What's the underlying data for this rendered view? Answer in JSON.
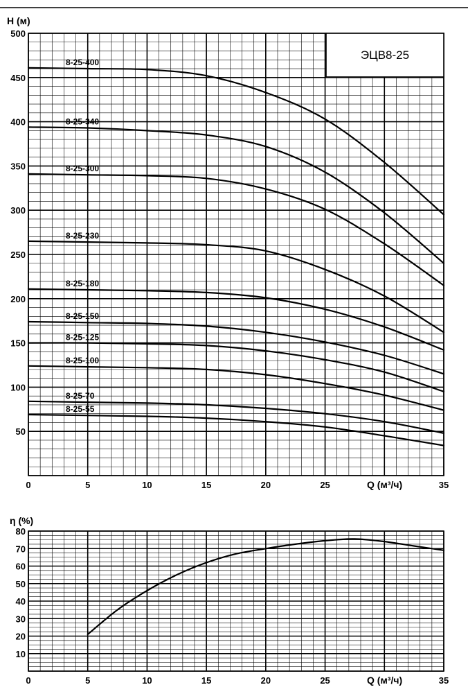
{
  "chart_data": [
    {
      "type": "line",
      "title_box": "ЭЦВ8-25",
      "ylabel": "H (м)",
      "xlabel": "Q (м³/ч)",
      "xlim": [
        0,
        35
      ],
      "ylim": [
        0,
        500
      ],
      "x_ticks": [
        "0",
        "5",
        "10",
        "15",
        "20",
        "25",
        "35"
      ],
      "y_ticks": [
        "50",
        "100",
        "150",
        "200",
        "250",
        "300",
        "350",
        "400",
        "450",
        "500"
      ],
      "grid": true,
      "x": [
        0,
        5,
        10,
        15,
        20,
        25,
        30,
        35
      ],
      "series": [
        {
          "name": "8-25-400",
          "values": [
            461,
            460,
            459,
            452,
            433,
            403,
            354,
            295
          ]
        },
        {
          "name": "8-25-340",
          "values": [
            394,
            393,
            390,
            385,
            372,
            343,
            297,
            240
          ]
        },
        {
          "name": "8-25-300",
          "values": [
            341,
            340,
            339,
            336,
            324,
            301,
            262,
            215
          ]
        },
        {
          "name": "8-25-230",
          "values": [
            265,
            264,
            263,
            261,
            254,
            233,
            203,
            162
          ]
        },
        {
          "name": "8-25-180",
          "values": [
            211,
            210,
            209,
            207,
            201,
            188,
            168,
            142
          ]
        },
        {
          "name": "8-25-150",
          "values": [
            174,
            173,
            172,
            169,
            162,
            151,
            136,
            115
          ]
        },
        {
          "name": "8-25-125",
          "values": [
            150,
            150,
            149,
            147,
            141,
            131,
            117,
            95
          ]
        },
        {
          "name": "8-25-100",
          "values": [
            124,
            123,
            122,
            120,
            114,
            104,
            91,
            74
          ]
        },
        {
          "name": "8-25-70",
          "values": [
            84,
            83,
            82,
            80,
            76,
            70,
            61,
            48
          ]
        },
        {
          "name": "8-25-55",
          "values": [
            69,
            68,
            67,
            65,
            61,
            55,
            45,
            34
          ]
        }
      ]
    },
    {
      "type": "line",
      "ylabel": "η (%)",
      "xlabel": "Q (м³/ч)",
      "xlim": [
        0,
        35
      ],
      "ylim": [
        0,
        80
      ],
      "x_ticks": [
        "0",
        "5",
        "10",
        "15",
        "20",
        "25",
        "35"
      ],
      "y_ticks": [
        "10",
        "20",
        "30",
        "40",
        "50",
        "60",
        "70",
        "80"
      ],
      "grid": true,
      "series": [
        {
          "x": [
            5,
            7.5,
            10,
            12.5,
            15,
            17.5,
            20,
            22.5,
            25,
            27.5,
            30,
            32.5,
            35
          ],
          "values": [
            21,
            35,
            46,
            55,
            62,
            67,
            70,
            72.5,
            74.5,
            75.5,
            74,
            71.5,
            69
          ]
        }
      ]
    }
  ]
}
